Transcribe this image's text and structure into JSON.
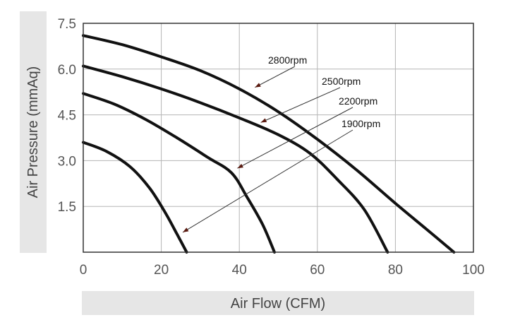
{
  "chart_data": {
    "type": "line",
    "title": "",
    "xlabel": "Air Flow (CFM)",
    "ylabel": "Air Pressure (mmAq)",
    "xlim": [
      0,
      100
    ],
    "ylim": [
      0,
      7.5
    ],
    "x_ticks": [
      "0",
      "20",
      "40",
      "60",
      "80",
      "100"
    ],
    "y_ticks": [
      "1.5",
      "3.0",
      "4.5",
      "6.0",
      "7.5"
    ],
    "grid": true,
    "legend": "none",
    "colors": {
      "curve": "#111111",
      "grid": "#b5b5b5",
      "axis_label_band": "#e6e6e6",
      "annotation_arrow": "#333333"
    },
    "series": [
      {
        "name": "2800rpm",
        "points": [
          [
            0,
            7.1
          ],
          [
            10,
            6.8
          ],
          [
            20,
            6.4
          ],
          [
            30,
            5.95
          ],
          [
            40,
            5.35
          ],
          [
            50,
            4.6
          ],
          [
            60,
            3.7
          ],
          [
            70,
            2.7
          ],
          [
            80,
            1.6
          ],
          [
            88,
            0.75
          ],
          [
            95,
            0
          ]
        ]
      },
      {
        "name": "2500rpm",
        "points": [
          [
            0,
            6.1
          ],
          [
            10,
            5.75
          ],
          [
            20,
            5.35
          ],
          [
            30,
            4.9
          ],
          [
            40,
            4.4
          ],
          [
            50,
            3.85
          ],
          [
            58,
            3.25
          ],
          [
            65,
            2.4
          ],
          [
            72,
            1.4
          ],
          [
            78,
            0
          ]
        ]
      },
      {
        "name": "2200rpm",
        "points": [
          [
            0,
            5.2
          ],
          [
            8,
            4.85
          ],
          [
            16,
            4.35
          ],
          [
            24,
            3.75
          ],
          [
            32,
            3.1
          ],
          [
            38,
            2.6
          ],
          [
            42,
            1.8
          ],
          [
            46,
            0.9
          ],
          [
            49,
            0
          ]
        ]
      },
      {
        "name": "1900rpm",
        "points": [
          [
            0,
            3.6
          ],
          [
            6,
            3.3
          ],
          [
            12,
            2.8
          ],
          [
            17,
            2.1
          ],
          [
            21,
            1.3
          ],
          [
            24,
            0.6
          ],
          [
            26.5,
            0
          ]
        ]
      }
    ],
    "annotations": [
      {
        "text": "2800rpm",
        "arrow_to": [
          44,
          5.4
        ]
      },
      {
        "text": "2500rpm",
        "arrow_to": [
          45.5,
          4.25
        ]
      },
      {
        "text": "2200rpm",
        "arrow_to": [
          39.5,
          2.75
        ]
      },
      {
        "text": "1900rpm",
        "arrow_to": [
          25.5,
          0.65
        ]
      }
    ]
  }
}
